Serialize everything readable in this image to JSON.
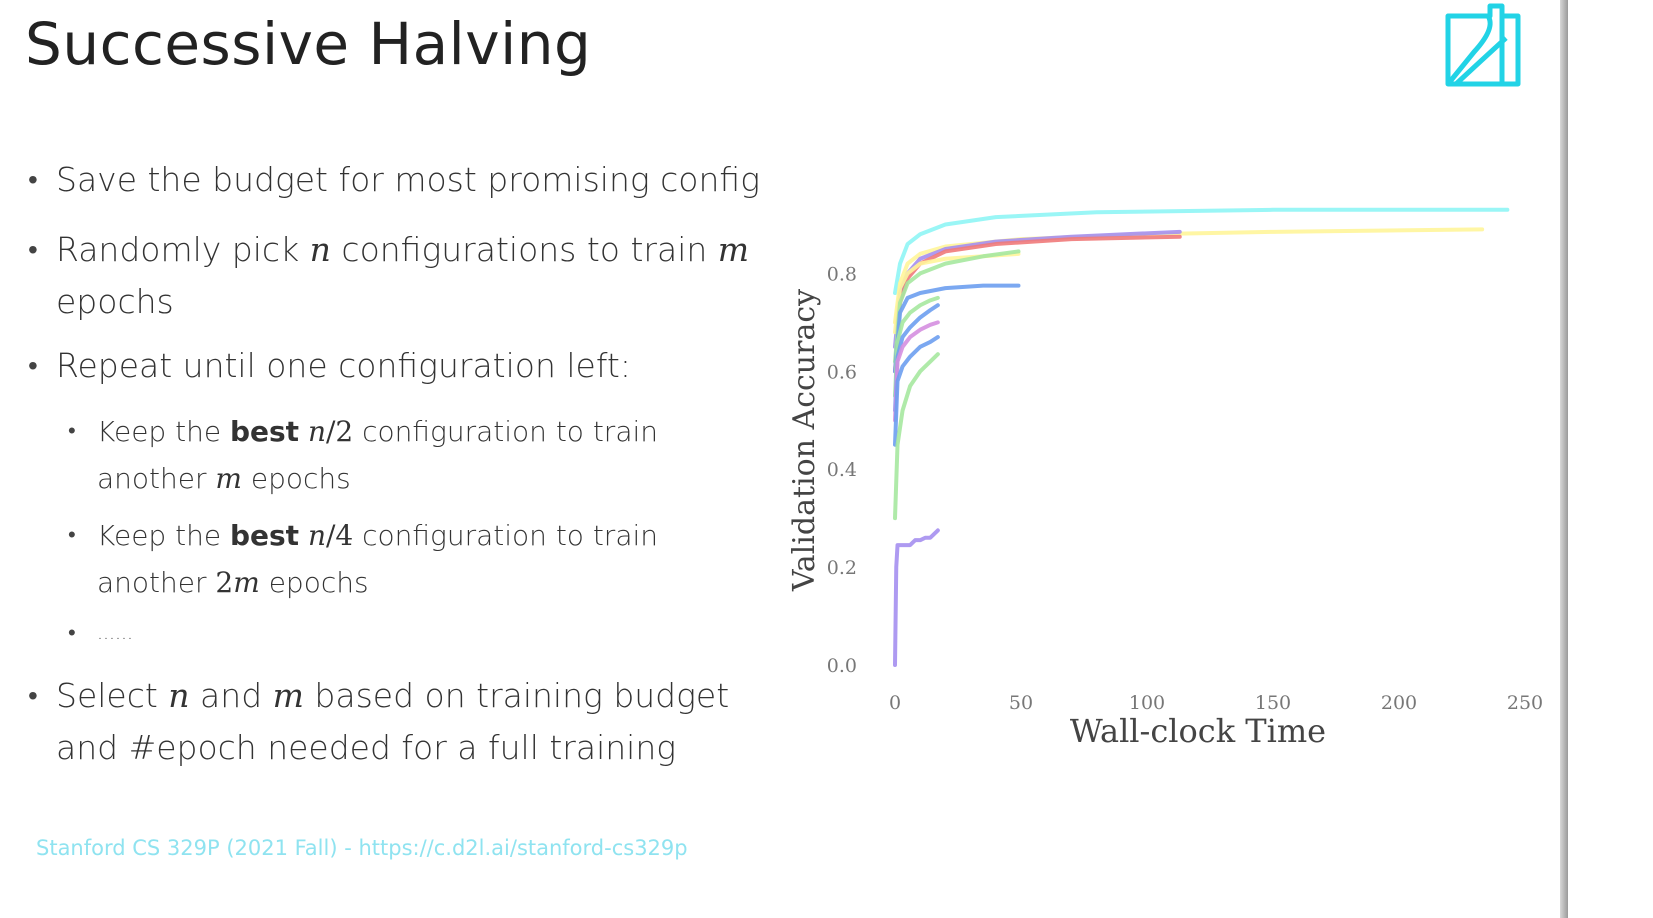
{
  "slide": {
    "title": "Successive Halving",
    "footer": "Stanford CS 329P (2021 Fall) - https://c.d2l.ai/stanford-cs329p"
  },
  "logo": {
    "icon": "d2l-logo-icon",
    "color": "#22d3e6"
  },
  "bullets": {
    "b1": "Save the budget for most promising config",
    "b2_pre": "Randomly pick ",
    "b2_n": "n",
    "b2_mid": " configurations to train ",
    "b2_m": "m",
    "b2_line2": "epochs",
    "b3": "Repeat until one configuration left:",
    "s1_pre": "Keep the ",
    "s1_bold": "best",
    "s1_n": "n",
    "s1_frac": "/2",
    "s1_post": " configuration to train",
    "s1_line2_pre": "another ",
    "s1_line2_m": "m",
    "s1_line2_post": " epochs",
    "s2_pre": "Keep the ",
    "s2_bold": "best",
    "s2_n": "n",
    "s2_frac": "/4",
    "s2_post": " configuration to train",
    "s2_line2_pre": "another ",
    "s2_line2_two": "2",
    "s2_line2_m": "m",
    "s2_line2_post": " epochs",
    "s3": "……",
    "b4_pre": "Select ",
    "b4_n": "n",
    "b4_mid": " and ",
    "b4_m": "m",
    "b4_post": " based on training budget",
    "b4_line2": "and #epoch needed for a full training"
  },
  "chart_data": {
    "type": "line",
    "xlabel": "Wall-clock Time",
    "ylabel": "Validation Accuracy",
    "xlim": [
      0,
      250
    ],
    "ylim": [
      0,
      0.95
    ],
    "xticks": [
      "0",
      "50",
      "100",
      "150",
      "200",
      "250"
    ],
    "yticks": [
      "0.0",
      "0.2",
      "0.4",
      "0.6",
      "0.8"
    ],
    "xtick_values": [
      0,
      50,
      100,
      150,
      200,
      250
    ],
    "ytick_values": [
      0,
      0.2,
      0.4,
      0.6,
      0.8
    ],
    "grid": false,
    "series": [
      {
        "color": "#8ff5f5",
        "x": [
          0,
          2,
          5,
          10,
          20,
          40,
          80,
          150,
          243
        ],
        "y": [
          0.76,
          0.82,
          0.86,
          0.88,
          0.9,
          0.915,
          0.925,
          0.93,
          0.93
        ]
      },
      {
        "color": "#fff59a",
        "x": [
          0,
          2,
          5,
          10,
          20,
          50,
          100,
          150,
          233
        ],
        "y": [
          0.7,
          0.78,
          0.82,
          0.84,
          0.855,
          0.87,
          0.88,
          0.885,
          0.89
        ]
      },
      {
        "color": "#a58ff0",
        "x": [
          0,
          2,
          5,
          10,
          20,
          40,
          70,
          113
        ],
        "y": [
          0.65,
          0.76,
          0.8,
          0.83,
          0.85,
          0.865,
          0.875,
          0.885
        ]
      },
      {
        "color": "#f07a7a",
        "x": [
          0,
          2,
          5,
          10,
          20,
          40,
          70,
          113
        ],
        "y": [
          0.6,
          0.74,
          0.79,
          0.82,
          0.845,
          0.86,
          0.87,
          0.875
        ]
      },
      {
        "color": "#fff59a",
        "x": [
          0,
          2,
          5,
          10,
          20,
          35,
          49
        ],
        "y": [
          0.68,
          0.77,
          0.8,
          0.82,
          0.83,
          0.835,
          0.84
        ]
      },
      {
        "color": "#a6e8a0",
        "x": [
          0,
          2,
          5,
          10,
          20,
          35,
          49
        ],
        "y": [
          0.62,
          0.74,
          0.78,
          0.8,
          0.82,
          0.835,
          0.845
        ]
      },
      {
        "color": "#6d9ef0",
        "x": [
          0,
          2,
          5,
          10,
          20,
          35,
          49
        ],
        "y": [
          0.6,
          0.72,
          0.75,
          0.76,
          0.77,
          0.775,
          0.775
        ]
      },
      {
        "color": "#a6e8a0",
        "x": [
          0,
          1,
          3,
          6,
          10,
          14,
          17
        ],
        "y": [
          0.55,
          0.66,
          0.7,
          0.72,
          0.735,
          0.745,
          0.75
        ]
      },
      {
        "color": "#6d9ef0",
        "x": [
          0,
          1,
          3,
          6,
          10,
          14,
          17
        ],
        "y": [
          0.52,
          0.63,
          0.67,
          0.69,
          0.71,
          0.725,
          0.735
        ]
      },
      {
        "color": "#d58fe0",
        "x": [
          0,
          1,
          3,
          6,
          10,
          14,
          17
        ],
        "y": [
          0.5,
          0.62,
          0.65,
          0.67,
          0.685,
          0.695,
          0.7
        ]
      },
      {
        "color": "#6d9ef0",
        "x": [
          0,
          1,
          3,
          6,
          10,
          14,
          17
        ],
        "y": [
          0.45,
          0.58,
          0.61,
          0.63,
          0.65,
          0.66,
          0.67
        ]
      },
      {
        "color": "#a6e8a0",
        "x": [
          0,
          1,
          3,
          6,
          10,
          14,
          17
        ],
        "y": [
          0.3,
          0.45,
          0.52,
          0.57,
          0.6,
          0.62,
          0.635
        ]
      },
      {
        "color": "#a58ff0",
        "x": [
          0,
          0.5,
          1,
          3,
          6,
          8,
          10,
          12,
          14,
          17
        ],
        "y": [
          0.0,
          0.2,
          0.245,
          0.245,
          0.245,
          0.255,
          0.255,
          0.26,
          0.26,
          0.275
        ]
      }
    ]
  }
}
